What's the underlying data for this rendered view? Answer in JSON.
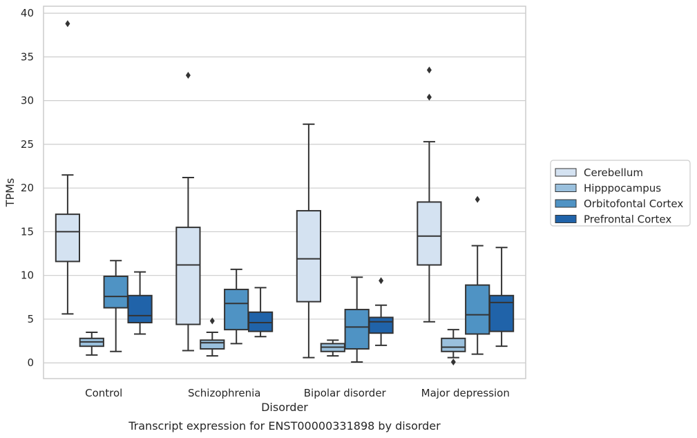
{
  "caption": "Transcript expression for ENST00000331898 by disorder",
  "chart_data": {
    "type": "box",
    "title": "",
    "xlabel": "Disorder",
    "ylabel": "TPMs",
    "ylim": [
      -1.8,
      40.8
    ],
    "yticks": [
      0,
      5,
      10,
      15,
      20,
      25,
      30,
      35,
      40
    ],
    "grid": "horizontal",
    "legend_position": "right",
    "categories": [
      "Control",
      "Schizophrenia",
      "Bipolar disorder",
      "Major depression"
    ],
    "series": [
      {
        "name": "Cerebellum",
        "color": "#d4e2f1",
        "boxes": [
          {
            "whislo": 5.6,
            "q1": 11.6,
            "med": 15.0,
            "q3": 17.0,
            "whishi": 21.5,
            "fliers": [
              38.8
            ]
          },
          {
            "whislo": 1.4,
            "q1": 4.4,
            "med": 11.2,
            "q3": 15.5,
            "whishi": 21.2,
            "fliers": [
              32.9
            ]
          },
          {
            "whislo": 0.6,
            "q1": 7.0,
            "med": 11.9,
            "q3": 17.4,
            "whishi": 27.3,
            "fliers": []
          },
          {
            "whislo": 4.7,
            "q1": 11.2,
            "med": 14.5,
            "q3": 18.4,
            "whishi": 25.3,
            "fliers": [
              30.4,
              33.5
            ]
          }
        ]
      },
      {
        "name": "Hipppocampus",
        "color": "#9ac0dd",
        "boxes": [
          {
            "whislo": 0.9,
            "q1": 1.9,
            "med": 2.4,
            "q3": 2.8,
            "whishi": 3.5,
            "fliers": []
          },
          {
            "whislo": 0.8,
            "q1": 1.6,
            "med": 2.3,
            "q3": 2.6,
            "whishi": 3.5,
            "fliers": [
              4.8
            ]
          },
          {
            "whislo": 0.8,
            "q1": 1.3,
            "med": 1.8,
            "q3": 2.2,
            "whishi": 2.6,
            "fliers": []
          },
          {
            "whislo": 0.6,
            "q1": 1.3,
            "med": 1.8,
            "q3": 2.8,
            "whishi": 3.8,
            "fliers": [
              0.1
            ]
          }
        ]
      },
      {
        "name": "Orbitofontal Cortex",
        "color": "#4f93c4",
        "boxes": [
          {
            "whislo": 1.3,
            "q1": 6.3,
            "med": 7.6,
            "q3": 9.9,
            "whishi": 11.7,
            "fliers": []
          },
          {
            "whislo": 2.2,
            "q1": 3.8,
            "med": 6.8,
            "q3": 8.4,
            "whishi": 10.7,
            "fliers": []
          },
          {
            "whislo": 0.1,
            "q1": 1.6,
            "med": 4.1,
            "q3": 6.1,
            "whishi": 9.8,
            "fliers": []
          },
          {
            "whislo": 1.0,
            "q1": 3.3,
            "med": 5.5,
            "q3": 8.9,
            "whishi": 13.4,
            "fliers": [
              18.7
            ]
          }
        ]
      },
      {
        "name": "Prefrontal Cortex",
        "color": "#2063a9",
        "boxes": [
          {
            "whislo": 3.3,
            "q1": 4.6,
            "med": 5.4,
            "q3": 7.7,
            "whishi": 10.4,
            "fliers": []
          },
          {
            "whislo": 3.0,
            "q1": 3.6,
            "med": 4.6,
            "q3": 5.8,
            "whishi": 8.6,
            "fliers": []
          },
          {
            "whislo": 2.0,
            "q1": 3.4,
            "med": 4.7,
            "q3": 5.2,
            "whishi": 6.6,
            "fliers": [
              9.4
            ]
          },
          {
            "whislo": 1.9,
            "q1": 3.6,
            "med": 6.9,
            "q3": 7.7,
            "whishi": 13.2,
            "fliers": []
          }
        ]
      }
    ]
  },
  "colors": {
    "line": "#333333",
    "grid": "#cccccc",
    "frame": "#cccccc",
    "text": "#262626"
  }
}
